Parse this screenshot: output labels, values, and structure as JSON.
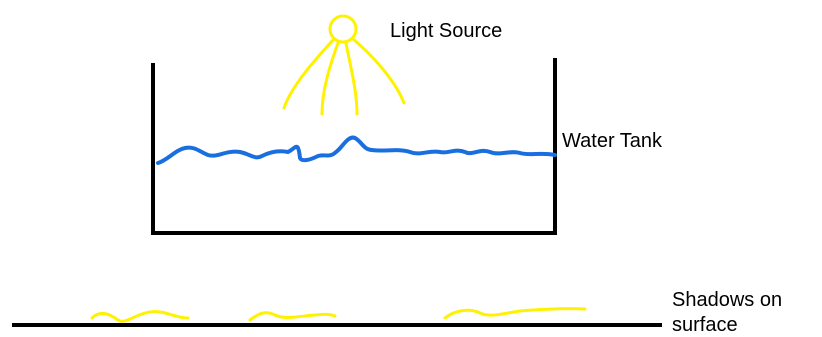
{
  "labels": {
    "light_source": "Light Source",
    "water_tank": "Water Tank",
    "shadows": [
      "Shadows on",
      "surface"
    ]
  }
}
